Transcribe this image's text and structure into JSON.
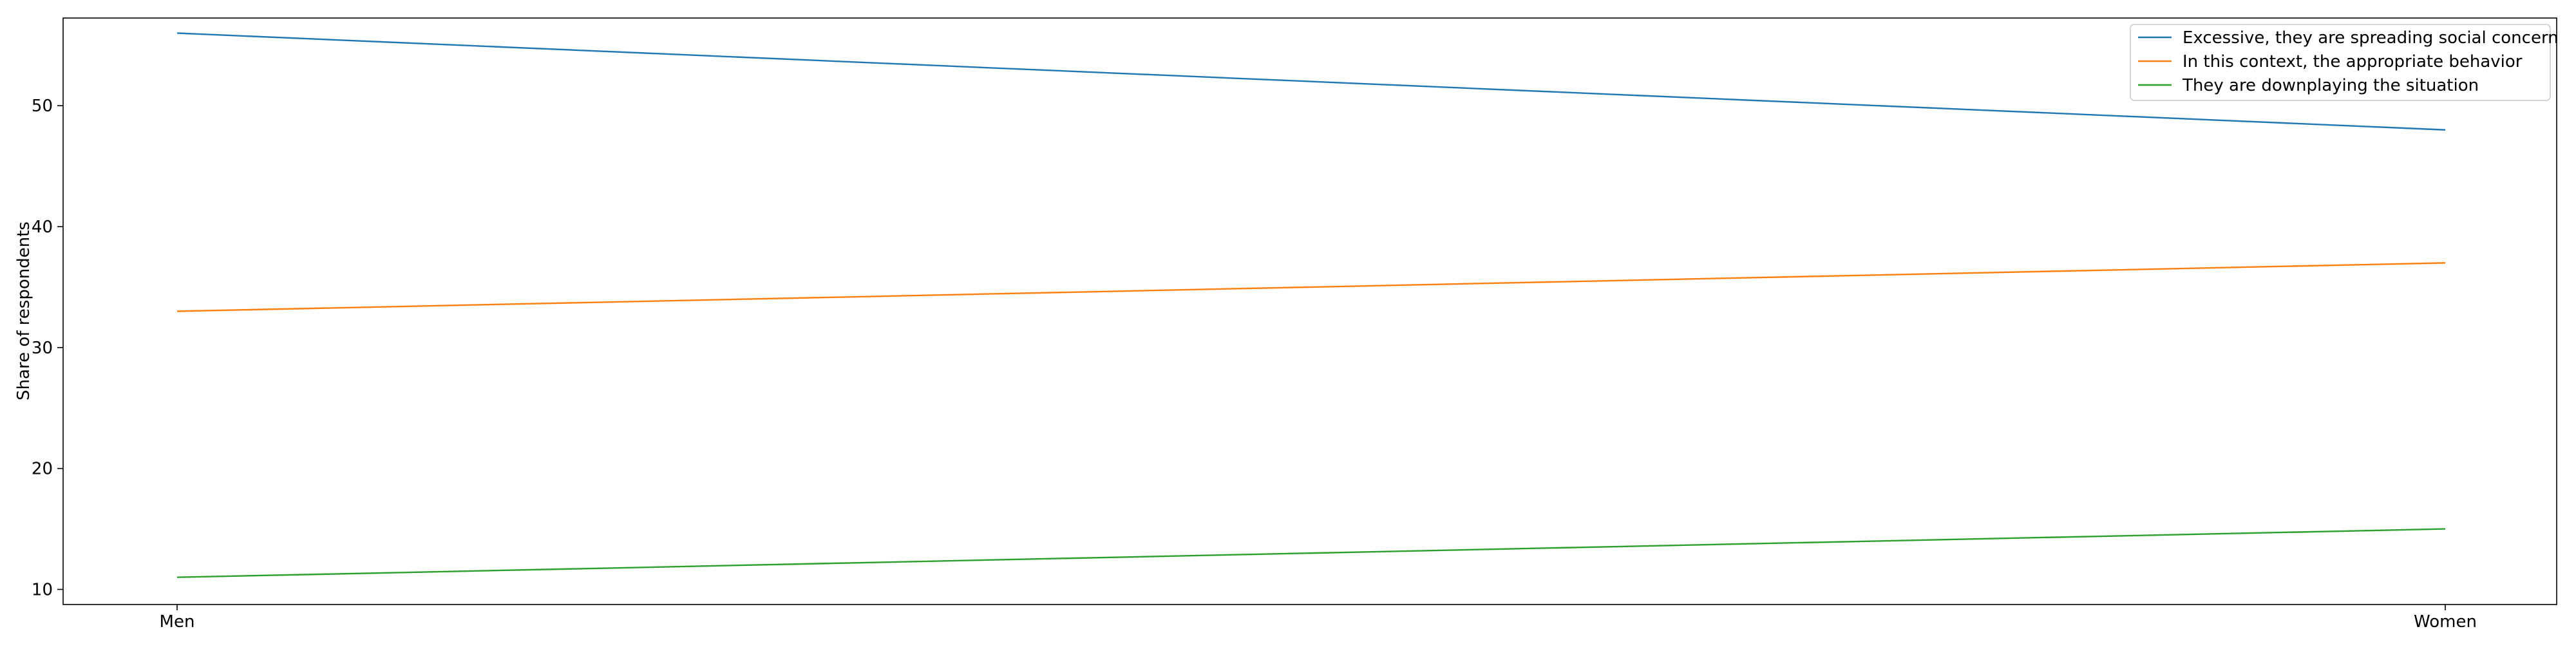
{
  "chart_data": {
    "type": "line",
    "categories": [
      "Men",
      "Women"
    ],
    "series": [
      {
        "name": "Excessive, they are spreading social concern",
        "values": [
          56,
          48
        ],
        "color": "#1f77b4"
      },
      {
        "name": "In this context, the appropriate behavior",
        "values": [
          33,
          37
        ],
        "color": "#ff7f0e"
      },
      {
        "name": "They are downplaying the situation",
        "values": [
          11,
          15
        ],
        "color": "#2ca02c"
      }
    ],
    "title": "",
    "xlabel": "",
    "ylabel": "Share of respondents",
    "yticks": [
      10,
      20,
      30,
      40,
      50
    ],
    "ylim": [
      8.75,
      57.25
    ],
    "grid": false,
    "legend_position": "top-right"
  }
}
